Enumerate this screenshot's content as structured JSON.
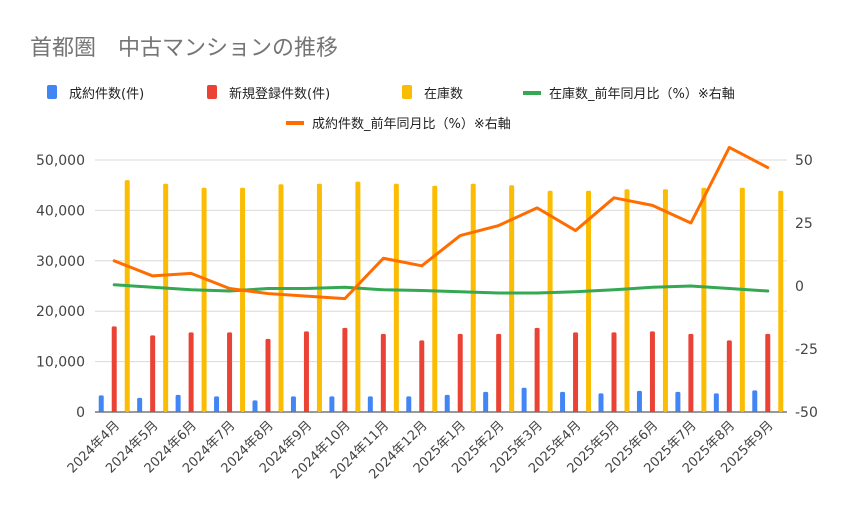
{
  "chart_data": {
    "type": "bar",
    "title": "首都圏　中古マンションの推移",
    "categories": [
      "2024年4月",
      "2024年5月",
      "2024年6月",
      "2024年7月",
      "2024年8月",
      "2024年9月",
      "2024年10月",
      "2024年11月",
      "2024年12月",
      "2025年1月",
      "2025年2月",
      "2025年3月",
      "2025年4月",
      "2025年5月",
      "2025年6月",
      "2025年7月",
      "2025年8月",
      "2025年9月"
    ],
    "series": [
      {
        "name": "成約件数(件)",
        "type": "bar",
        "axis": "left",
        "color": "#4285F4",
        "values": [
          3300,
          2800,
          3400,
          3100,
          2300,
          3100,
          3100,
          3100,
          3100,
          3400,
          4000,
          4800,
          4000,
          3700,
          4200,
          4000,
          3700,
          4300
        ]
      },
      {
        "name": "新規登録件数(件)",
        "type": "bar",
        "axis": "left",
        "color": "#EA4335",
        "values": [
          17000,
          15200,
          15800,
          15800,
          14500,
          16000,
          16700,
          15500,
          14200,
          15500,
          15500,
          16700,
          15800,
          15800,
          16000,
          15500,
          14200,
          15500
        ]
      },
      {
        "name": "在庫数",
        "type": "bar",
        "axis": "left",
        "color": "#FBBC04",
        "values": [
          46000,
          45300,
          44500,
          44500,
          45200,
          45300,
          45700,
          45300,
          44900,
          45300,
          45000,
          43900,
          43900,
          44200,
          44200,
          44500,
          44500,
          43900
        ]
      },
      {
        "name": "在庫数_前年同月比（%）※右軸",
        "type": "line",
        "axis": "right",
        "color": "#34A853",
        "values": [
          0.5,
          -0.5,
          -1.5,
          -2.0,
          -1.0,
          -1.0,
          -0.5,
          -1.5,
          -1.8,
          -2.3,
          -2.8,
          -2.8,
          -2.3,
          -1.5,
          -0.5,
          0.0,
          -1.0,
          -2.0
        ]
      },
      {
        "name": "成約件数_前年同月比（%）※右軸",
        "type": "line",
        "axis": "right",
        "color": "#FF6D01",
        "values": [
          10,
          4,
          5,
          -1,
          -3,
          -4,
          -5,
          11,
          8,
          20,
          24,
          31,
          22,
          35,
          32,
          25,
          55,
          47
        ]
      }
    ],
    "y_left": {
      "ticks": [
        "0",
        "10,000",
        "20,000",
        "30,000",
        "40,000",
        "50,000"
      ],
      "min": 0,
      "max": 50000
    },
    "y_right": {
      "ticks": [
        "-50",
        "-25",
        "0",
        "25",
        "50"
      ],
      "min": -50,
      "max": 50
    },
    "legend": "top",
    "grid": true
  }
}
